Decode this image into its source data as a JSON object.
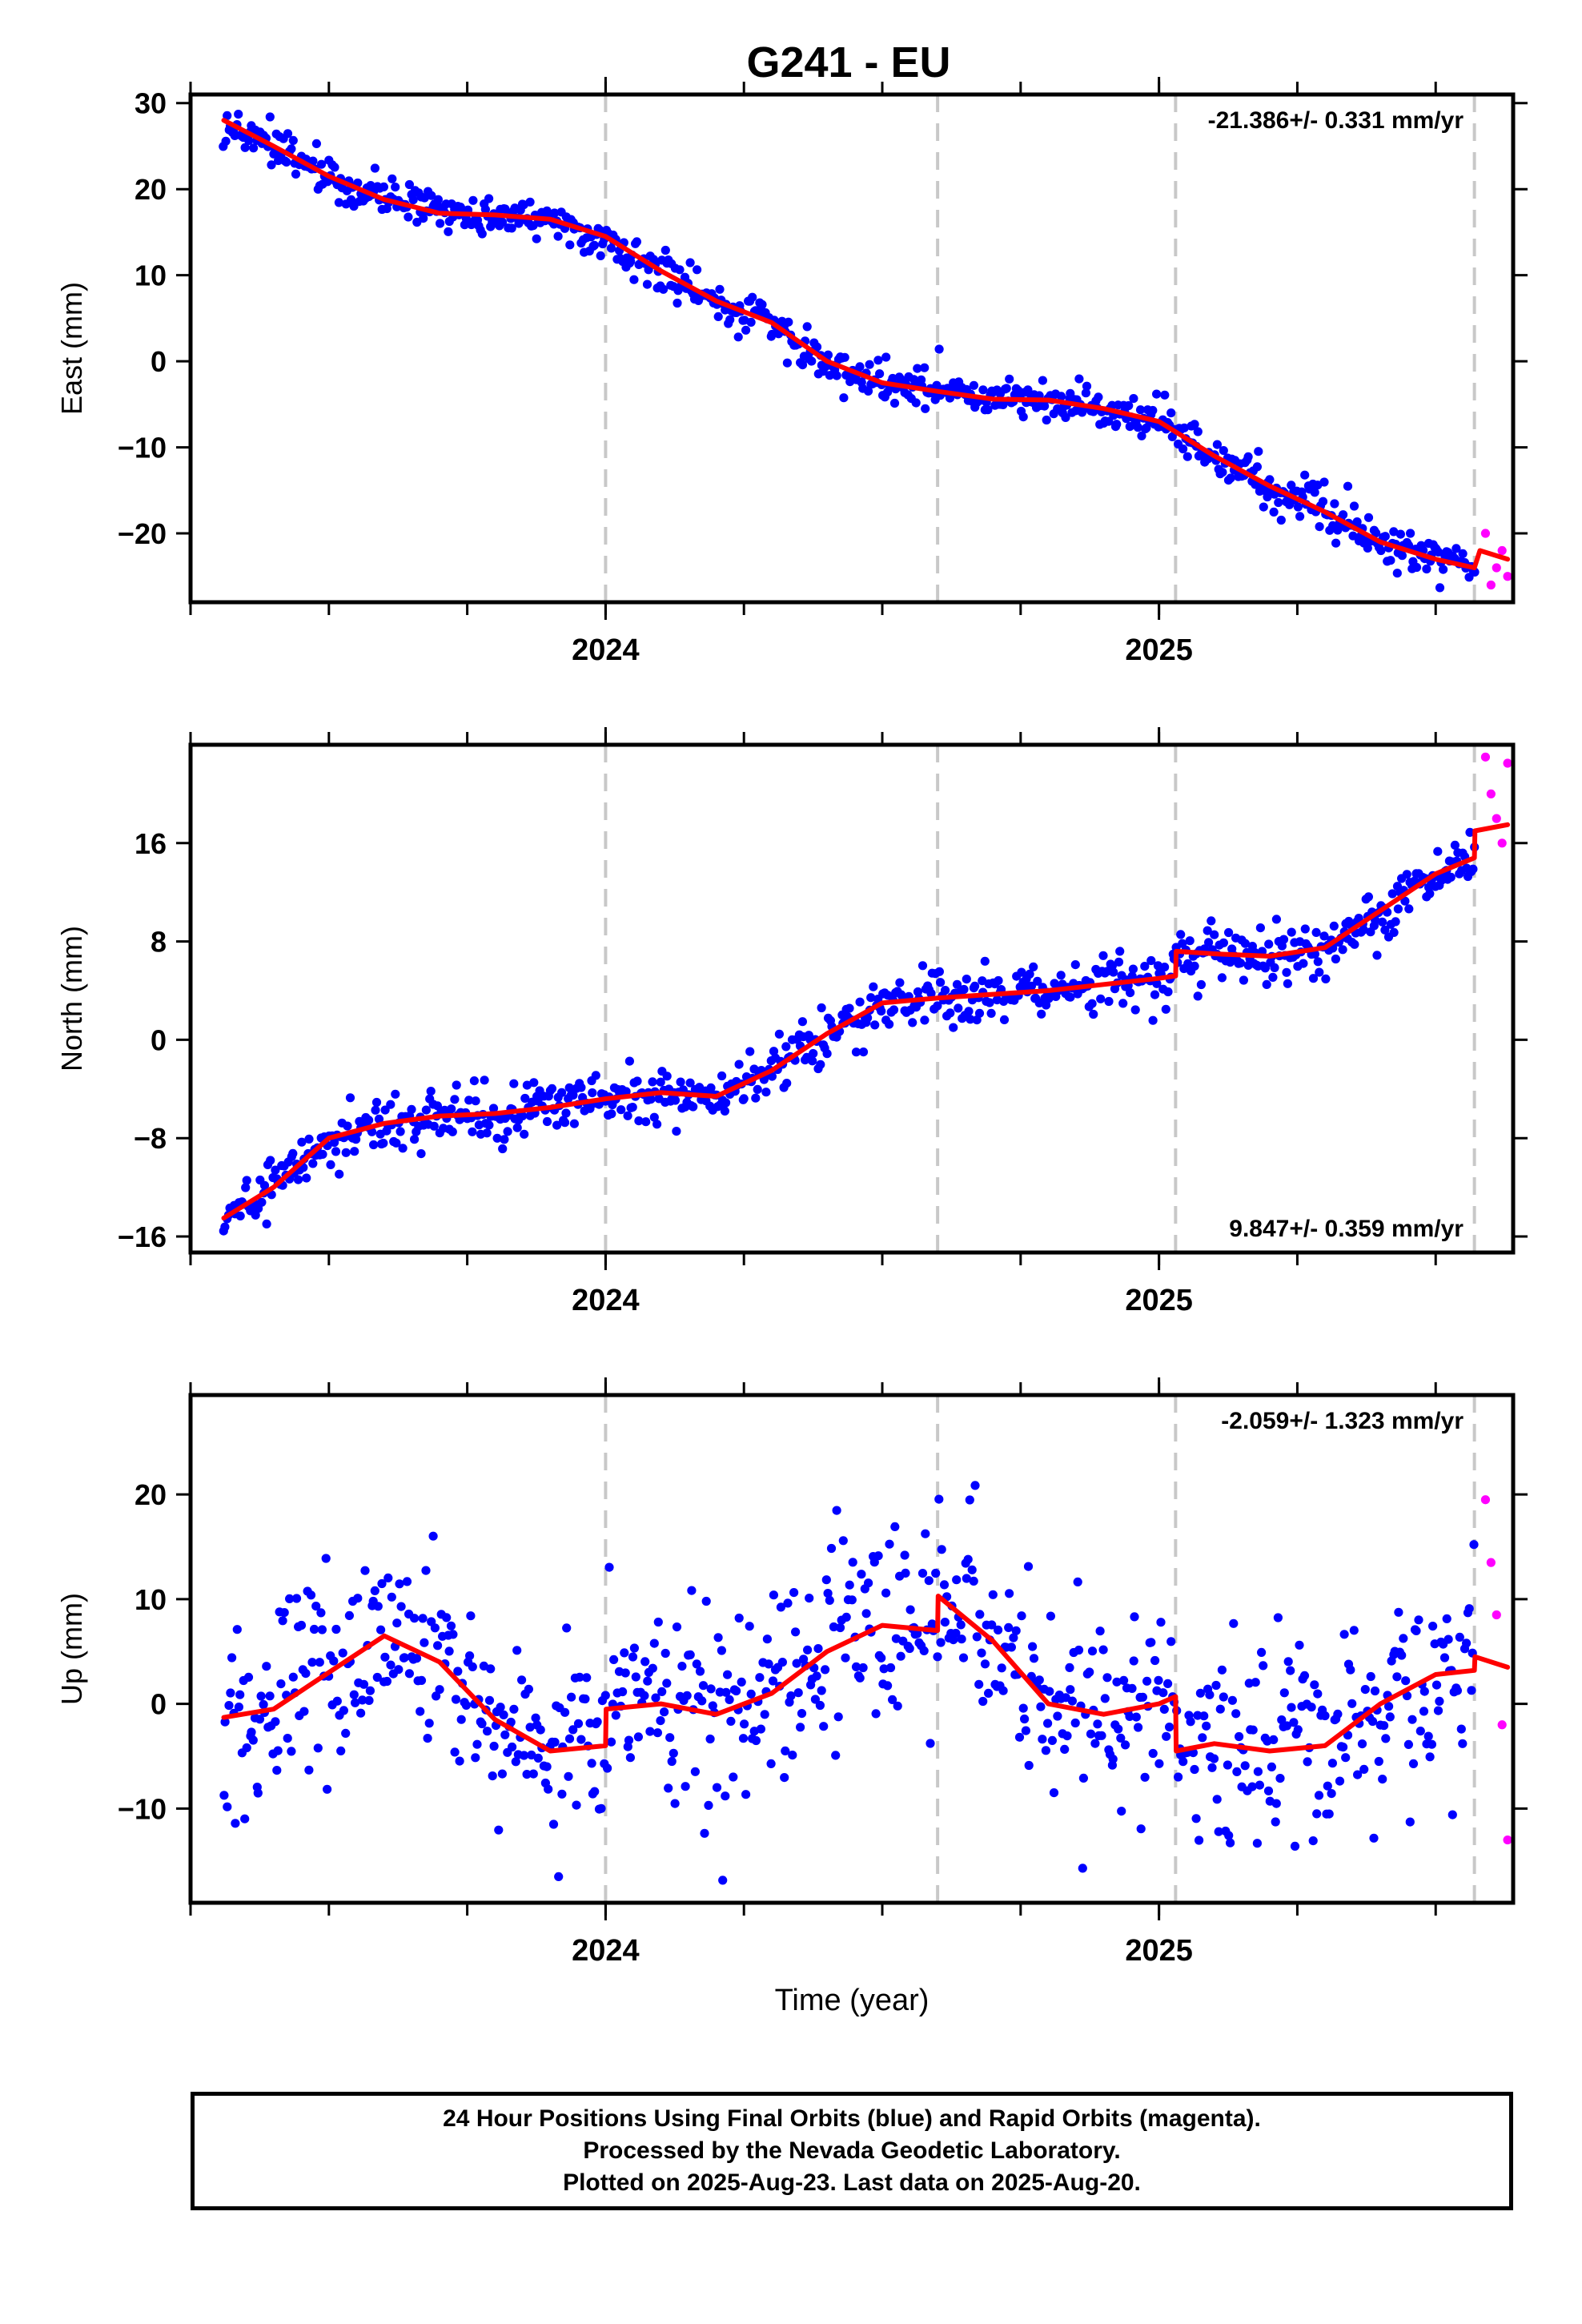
{
  "title": "G241 - EU",
  "xlabel": "Time (year)",
  "colors": {
    "final_orbits": "#0000ff",
    "rapid_orbits": "#ff00ff",
    "model_fit": "#ff0000",
    "step_lines": "#c8c8c8",
    "axes": "#000000"
  },
  "footer": {
    "line1": "24 Hour Positions Using Final Orbits (blue) and Rapid Orbits (magenta).",
    "line2": "Processed by the Nevada Geodetic Laboratory.",
    "line3": "Plotted on 2025-Aug-23. Last data on 2025-Aug-20."
  },
  "chart_data": [
    {
      "type": "scatter",
      "component": "east",
      "ylabel": "East (mm)",
      "velocity_label": "-21.386+/- 0.331 mm/yr",
      "label_position": "top-right",
      "xlim": [
        2023.25,
        2025.64
      ],
      "ylim": [
        -28,
        31
      ],
      "x_ticks": [
        2024,
        2025
      ],
      "y_ticks": [
        -20,
        -10,
        0,
        10,
        20,
        30
      ],
      "step_epochs": [
        2024.0,
        2024.6,
        2025.03,
        2025.57
      ],
      "fit": {
        "x": [
          2023.31,
          2023.4,
          2023.5,
          2023.6,
          2023.7,
          2023.8,
          2023.9,
          2024.0,
          2024.1,
          2024.2,
          2024.3,
          2024.4,
          2024.5,
          2024.6,
          2024.7,
          2024.8,
          2024.9,
          2025.0,
          2025.1,
          2025.2,
          2025.3,
          2025.4,
          2025.5,
          2025.57,
          2025.58,
          2025.63
        ],
        "y": [
          28,
          25,
          21.5,
          18.8,
          17.2,
          17,
          16.5,
          14.5,
          10.5,
          7,
          4.5,
          0,
          -2.5,
          -3.5,
          -4.4,
          -4.5,
          -5.5,
          -7,
          -11,
          -14.5,
          -17.5,
          -21,
          -23,
          -24,
          -22,
          -23
        ]
      },
      "rapid": {
        "x": [
          2025.59,
          2025.6,
          2025.61,
          2025.62,
          2025.63
        ],
        "y": [
          -20,
          -26,
          -24,
          -22,
          -25
        ]
      }
    },
    {
      "type": "scatter",
      "component": "north",
      "ylabel": "North (mm)",
      "velocity_label": "9.847+/- 0.359 mm/yr",
      "label_position": "bottom-right",
      "xlim": [
        2023.25,
        2025.64
      ],
      "ylim": [
        -17.3,
        24
      ],
      "x_ticks": [
        2024,
        2025
      ],
      "y_ticks": [
        -16,
        -8,
        0,
        8,
        16
      ],
      "step_epochs": [
        2024.0,
        2024.6,
        2025.03,
        2025.57
      ],
      "fit": {
        "x": [
          2023.31,
          2023.4,
          2023.5,
          2023.6,
          2023.7,
          2023.8,
          2023.9,
          2024.0,
          2024.1,
          2024.2,
          2024.3,
          2024.4,
          2024.5,
          2024.6,
          2024.7,
          2024.8,
          2024.9,
          2025.0,
          2025.03,
          2025.031,
          2025.1,
          2025.2,
          2025.3,
          2025.4,
          2025.5,
          2025.57,
          2025.571,
          2025.63
        ],
        "y": [
          -14.5,
          -12,
          -8,
          -6.8,
          -6.2,
          -6.0,
          -5.5,
          -4.8,
          -4.3,
          -4.6,
          -2.5,
          0.5,
          3.0,
          3.4,
          3.7,
          4.0,
          4.5,
          5.0,
          5.2,
          7.2,
          7.0,
          6.8,
          7.5,
          10.5,
          13.5,
          14.8,
          17.0,
          17.5
        ]
      },
      "rapid": {
        "x": [
          2025.59,
          2025.6,
          2025.61,
          2025.62,
          2025.63
        ],
        "y": [
          23,
          20,
          18,
          16,
          22.5
        ]
      }
    },
    {
      "type": "scatter",
      "component": "up",
      "ylabel": "Up (mm)",
      "velocity_label": "-2.059+/- 1.323 mm/yr",
      "label_position": "top-right",
      "xlim": [
        2023.25,
        2025.64
      ],
      "ylim": [
        -19,
        29.5
      ],
      "x_ticks": [
        2024,
        2025
      ],
      "y_ticks": [
        -10,
        0,
        10,
        20
      ],
      "step_epochs": [
        2024.0,
        2024.6,
        2025.03,
        2025.57
      ],
      "fit": {
        "x": [
          2023.31,
          2023.4,
          2023.5,
          2023.6,
          2023.7,
          2023.8,
          2023.9,
          2024.0,
          2024.001,
          2024.1,
          2024.2,
          2024.3,
          2024.4,
          2024.5,
          2024.6,
          2024.601,
          2024.7,
          2024.8,
          2024.9,
          2025.0,
          2025.03,
          2025.031,
          2025.1,
          2025.2,
          2025.3,
          2025.4,
          2025.5,
          2025.57,
          2025.571,
          2025.63
        ],
        "y": [
          -1.3,
          -0.5,
          3,
          6.5,
          4,
          -1.5,
          -4.5,
          -4,
          -0.5,
          0,
          -1,
          1,
          5,
          7.5,
          7,
          10.3,
          6,
          0,
          -1,
          0,
          0.7,
          -4.5,
          -3.8,
          -4.5,
          -4,
          0,
          2.8,
          3.2,
          4.5,
          3.5
        ]
      },
      "rapid": {
        "x": [
          2025.59,
          2025.6,
          2025.61,
          2025.62,
          2025.63
        ],
        "y": [
          19.5,
          13.5,
          8.5,
          -2,
          -13
        ]
      }
    }
  ]
}
